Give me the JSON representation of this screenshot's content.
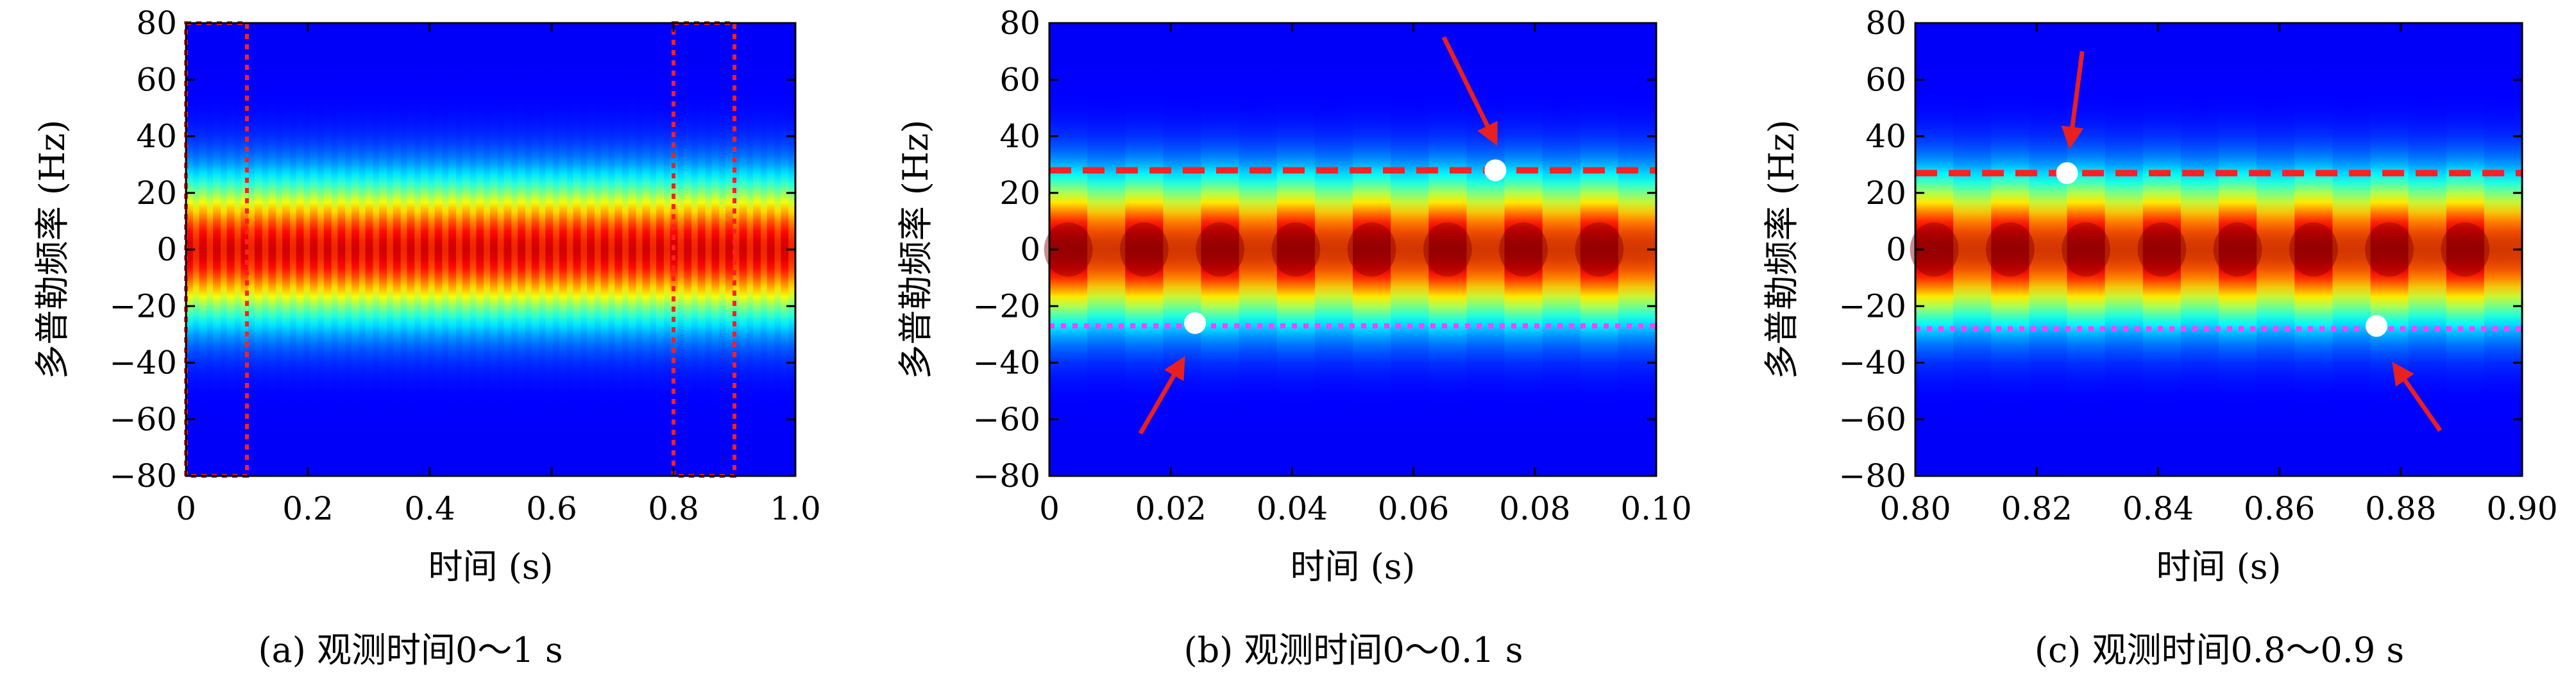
{
  "chart_data": [
    {
      "type": "heatmap",
      "caption": "(a) 观测时间0～1 s",
      "xlabel": "时间 (s)",
      "ylabel": "多普勒频率 (Hz)",
      "xlim": [
        0,
        1.0
      ],
      "ylim": [
        -80,
        80
      ],
      "xticks": [
        "0",
        "0.2",
        "0.4",
        "0.6",
        "0.8",
        "1.0"
      ],
      "yticks": [
        "80",
        "60",
        "40",
        "20",
        "0",
        "-20",
        "-40",
        "-60",
        "-80"
      ],
      "colormap": "jet",
      "mod_cycles": 44,
      "highlight_boxes": [
        {
          "x": [
            0,
            0.1
          ],
          "y": [
            -80,
            80
          ],
          "color": "#ff2020"
        },
        {
          "x": [
            0.8,
            0.9
          ],
          "y": [
            -80,
            80
          ],
          "color": "#ff2020"
        }
      ]
    },
    {
      "type": "heatmap",
      "caption": "(b) 观测时间0～0.1 s",
      "xlabel": "时间 (s)",
      "ylabel": "多普勒频率 (Hz)",
      "xlim": [
        0,
        0.1
      ],
      "ylim": [
        -80,
        80
      ],
      "xticks": [
        "0",
        "0.02",
        "0.04",
        "0.06",
        "0.08",
        "0.10"
      ],
      "yticks": [
        "80",
        "60",
        "40",
        "20",
        "0",
        "-20",
        "-40",
        "-60",
        "-80"
      ],
      "colormap": "jet",
      "mod_cycles": 8,
      "reference_lines": [
        {
          "y": 28,
          "style": "dashed",
          "color": "#ff2020"
        },
        {
          "y": -27,
          "style": "dotted",
          "color": "#ff40ff"
        }
      ],
      "points": [
        {
          "x": 0.0735,
          "y": 28,
          "color": "#ffffff"
        },
        {
          "x": 0.024,
          "y": -26,
          "color": "#ffffff"
        }
      ],
      "arrows": [
        {
          "from": [
            0.065,
            75
          ],
          "to": [
            0.0735,
            38
          ],
          "color": "#e82020"
        },
        {
          "from": [
            0.015,
            -65
          ],
          "to": [
            0.022,
            -39
          ],
          "color": "#e82020"
        }
      ]
    },
    {
      "type": "heatmap",
      "caption": "(c) 观测时间0.8～0.9 s",
      "xlabel": "时间 (s)",
      "ylabel": "多普勒频率 (Hz)",
      "xlim": [
        0.8,
        0.9
      ],
      "ylim": [
        -80,
        80
      ],
      "xticks": [
        "0.80",
        "0.82",
        "0.84",
        "0.86",
        "0.88",
        "0.90"
      ],
      "yticks": [
        "80",
        "60",
        "40",
        "20",
        "0",
        "-20",
        "-40",
        "-60",
        "-80"
      ],
      "colormap": "jet",
      "mod_cycles": 8,
      "reference_lines": [
        {
          "y": 27,
          "style": "dashed",
          "color": "#ff2020"
        },
        {
          "y": -28,
          "style": "dotted",
          "color": "#ff40ff"
        }
      ],
      "points": [
        {
          "x": 0.825,
          "y": 27,
          "color": "#ffffff"
        },
        {
          "x": 0.876,
          "y": -27,
          "color": "#ffffff"
        }
      ],
      "arrows": [
        {
          "from": [
            0.8275,
            70
          ],
          "to": [
            0.8255,
            37
          ],
          "color": "#e82020"
        },
        {
          "from": [
            0.8865,
            -64
          ],
          "to": [
            0.879,
            -41
          ],
          "color": "#e82020"
        }
      ]
    }
  ]
}
